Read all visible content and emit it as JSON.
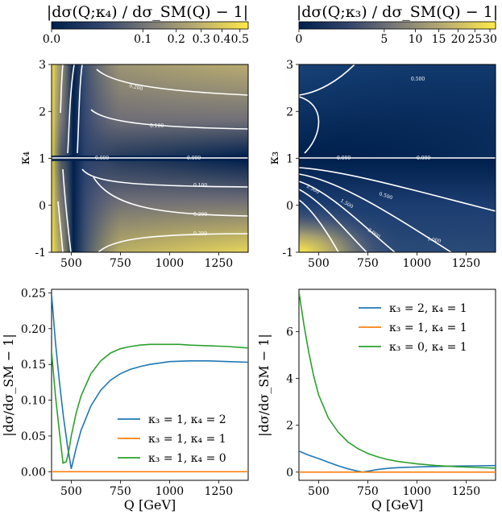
{
  "chart_data": [
    {
      "type": "heatmap",
      "id": "k4",
      "title": "|dσ(Q;κ₄) / dσ_SM(Q) − 1|",
      "xlabel": "",
      "ylabel": "κ₄",
      "xlim": [
        400,
        1400
      ],
      "ylim": [
        -1,
        3
      ],
      "xticks": [
        "500",
        "750",
        "1000",
        "1250"
      ],
      "yticks": [
        "-1",
        "0",
        "1",
        "2",
        "3"
      ],
      "colorbar": {
        "scale": "power",
        "range": [
          0.0,
          0.55
        ],
        "ticks": [
          "0.0",
          "0.1",
          "0.2",
          "0.3",
          "0.4",
          "0.5"
        ],
        "tick_values": [
          0.0,
          0.1,
          0.2,
          0.3,
          0.4,
          0.5
        ]
      },
      "contour_labels": [
        "0.100",
        "0.200",
        "0.300",
        "0.000"
      ]
    },
    {
      "type": "heatmap",
      "id": "k3",
      "title": "|dσ(Q;κ₃) / dσ_SM(Q) − 1|",
      "xlabel": "",
      "ylabel": "κ₃",
      "xlim": [
        400,
        1400
      ],
      "ylim": [
        -1,
        3
      ],
      "xticks": [
        "500",
        "750",
        "1000",
        "1250"
      ],
      "yticks": [
        "-1",
        "0",
        "1",
        "2",
        "3"
      ],
      "colorbar": {
        "scale": "power",
        "range": [
          0,
          32
        ],
        "ticks": [
          "0",
          "5",
          "10",
          "15",
          "20",
          "25",
          "30"
        ],
        "tick_values": [
          0,
          5,
          10,
          15,
          20,
          25,
          30
        ]
      },
      "contour_labels": [
        "0.500",
        "1.000",
        "1.500",
        "2.000",
        "2.500",
        "0.000"
      ]
    },
    {
      "type": "line",
      "id": "linek4",
      "xlabel": "Q [GeV]",
      "ylabel": "|dσ/dσ_SM − 1|",
      "xlim": [
        400,
        1400
      ],
      "ylim": [
        -0.012,
        0.255
      ],
      "xticks": [
        "500",
        "750",
        "1000",
        "1250"
      ],
      "yticks": [
        "0.00",
        "0.05",
        "0.10",
        "0.15",
        "0.20",
        "0.25"
      ],
      "ytick_values": [
        0,
        0.05,
        0.1,
        0.15,
        0.2,
        0.25
      ],
      "legend_position": "lower-right",
      "series": [
        {
          "name": "κ₃ = 1, κ₄ = 2",
          "color": "#1f77b4",
          "x": [
            400,
            420,
            440,
            460,
            480,
            500,
            525,
            550,
            600,
            650,
            700,
            750,
            800,
            850,
            900,
            950,
            1000,
            1100,
            1200,
            1300,
            1400
          ],
          "y": [
            0.248,
            0.18,
            0.125,
            0.078,
            0.038,
            0.004,
            0.033,
            0.058,
            0.092,
            0.114,
            0.128,
            0.137,
            0.143,
            0.147,
            0.15,
            0.152,
            0.154,
            0.155,
            0.155,
            0.154,
            0.153
          ]
        },
        {
          "name": "κ₃ = 1, κ₄ = 1",
          "color": "#ff7f0e",
          "x": [
            400,
            1400
          ],
          "y": [
            0.0,
            0.0
          ]
        },
        {
          "name": "κ₃ = 1, κ₄ = 0",
          "color": "#2ca02c",
          "x": [
            400,
            420,
            440,
            458,
            475,
            490,
            500,
            525,
            550,
            600,
            650,
            700,
            750,
            800,
            850,
            900,
            950,
            1000,
            1050,
            1100,
            1200,
            1300,
            1400
          ],
          "y": [
            0.168,
            0.105,
            0.055,
            0.012,
            0.014,
            0.033,
            0.05,
            0.082,
            0.106,
            0.137,
            0.155,
            0.166,
            0.172,
            0.175,
            0.177,
            0.178,
            0.178,
            0.178,
            0.178,
            0.177,
            0.176,
            0.175,
            0.173
          ]
        }
      ]
    },
    {
      "type": "line",
      "id": "linek3",
      "xlabel": "Q [GeV]",
      "ylabel": "|dσ/dσ_SM − 1|",
      "xlim": [
        400,
        1400
      ],
      "ylim": [
        -0.35,
        7.8
      ],
      "xticks": [
        "500",
        "750",
        "1000",
        "1250"
      ],
      "yticks": [
        "0",
        "2",
        "4",
        "6"
      ],
      "ytick_values": [
        0,
        2,
        4,
        6
      ],
      "legend_position": "top-right",
      "series": [
        {
          "name": "κ₃ = 2, κ₄ = 1",
          "color": "#1f77b4",
          "x": [
            400,
            450,
            500,
            550,
            600,
            650,
            700,
            725,
            750,
            800,
            850,
            900,
            1000,
            1100,
            1200,
            1300,
            1400
          ],
          "y": [
            0.9,
            0.72,
            0.58,
            0.42,
            0.27,
            0.14,
            0.04,
            0.0,
            0.04,
            0.11,
            0.16,
            0.19,
            0.22,
            0.24,
            0.26,
            0.27,
            0.28
          ]
        },
        {
          "name": "κ₃ = 1, κ₄ = 1",
          "color": "#ff7f0e",
          "x": [
            400,
            1400
          ],
          "y": [
            0.0,
            0.0
          ]
        },
        {
          "name": "κ₃ = 0, κ₄ = 1",
          "color": "#2ca02c",
          "x": [
            400,
            425,
            450,
            475,
            500,
            550,
            600,
            650,
            700,
            750,
            800,
            850,
            900,
            1000,
            1100,
            1200,
            1300,
            1400
          ],
          "y": [
            7.7,
            6.3,
            5.1,
            4.1,
            3.3,
            2.3,
            1.7,
            1.28,
            1.0,
            0.8,
            0.65,
            0.54,
            0.46,
            0.35,
            0.28,
            0.23,
            0.2,
            0.17
          ]
        }
      ]
    }
  ],
  "colors": {
    "cmap_low": "#00204d",
    "cmap_mid": "#7c7b78",
    "cmap_high": "#ffea46",
    "contour": "#ffffff"
  }
}
